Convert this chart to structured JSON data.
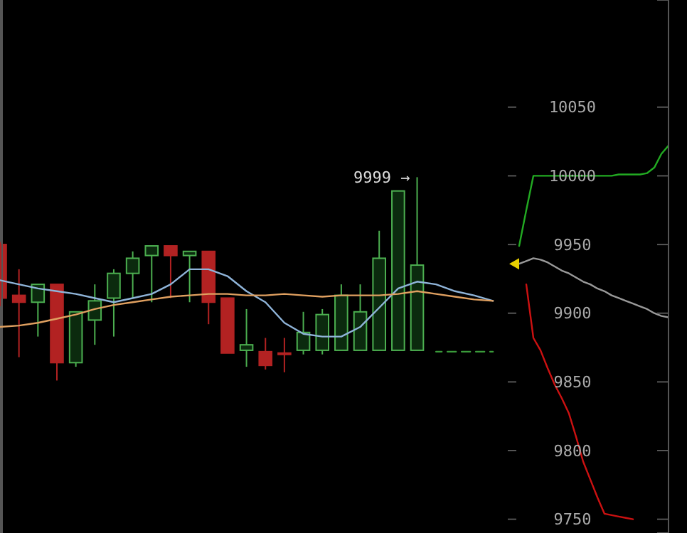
{
  "chart_data": [
    {
      "type": "candlestick",
      "categories": [
        null,
        null,
        null,
        null,
        null,
        null,
        null,
        null,
        null,
        null,
        null,
        null,
        null,
        null,
        null,
        null,
        null,
        null,
        null,
        null,
        null,
        null,
        null
      ],
      "ohlc": [
        [
          9950,
          9952,
          9905,
          9911
        ],
        [
          9913,
          9932,
          9868,
          9908
        ],
        [
          9908,
          9921,
          9883,
          9921
        ],
        [
          9921,
          9921,
          9851,
          9864
        ],
        [
          9864,
          9901,
          9861,
          9901
        ],
        [
          9895,
          9921,
          9877,
          9909
        ],
        [
          9911,
          9932,
          9883,
          9929
        ],
        [
          9929,
          9945,
          9911,
          9940
        ],
        [
          9942,
          9949,
          9908,
          9949
        ],
        [
          9949,
          9949,
          9911,
          9942
        ],
        [
          9942,
          9945,
          9908,
          9945
        ],
        [
          9945,
          9945,
          9892,
          9908
        ],
        [
          9911,
          9911,
          9871,
          9871
        ],
        [
          9873,
          9903,
          9861,
          9877
        ],
        [
          9872,
          9882,
          9859,
          9862
        ],
        [
          9871,
          9882,
          9857,
          9870
        ],
        [
          9873,
          9901,
          9870,
          9886
        ],
        [
          9873,
          9903,
          9870,
          9899
        ],
        [
          9873,
          9921,
          9873,
          9913
        ],
        [
          9873,
          9921,
          9873,
          9901
        ],
        [
          9873,
          9960,
          9873,
          9940
        ],
        [
          9873,
          9989,
          9873,
          9989
        ],
        [
          9873,
          9999,
          9873,
          9935
        ]
      ],
      "colors": [
        "#b22222",
        "#b22222",
        "#4caf50",
        "#b22222",
        "#4caf50",
        "#4caf50",
        "#4caf50",
        "#4caf50",
        "#4caf50",
        "#b22222",
        "#4caf50",
        "#b22222",
        "#b22222",
        "#4caf50",
        "#b22222",
        "#b22222",
        "#4caf50",
        "#4caf50",
        "#4caf50",
        "#4caf50",
        "#4caf50",
        "#4caf50",
        "#4caf50"
      ],
      "ylim": [
        9740,
        10128
      ],
      "tick_labels": false,
      "annotations": [
        "9999 →"
      ]
    },
    {
      "type": "line",
      "categories": [
        null,
        null,
        null,
        null,
        null,
        null,
        null,
        null,
        null,
        null,
        null,
        null,
        null,
        null,
        null,
        null,
        null,
        null,
        null,
        null,
        null,
        null,
        null,
        null,
        null,
        null,
        null
      ],
      "series": [
        {
          "color": "#8fb4d9",
          "values": [
            9924,
            9921,
            9918,
            9916,
            9914,
            9911,
            9908,
            9911,
            9914,
            9921,
            9932,
            9932,
            9927,
            9916,
            9908,
            9893,
            9885,
            9883,
            9883,
            9890,
            9904,
            9918,
            9923,
            9921,
            9916,
            9913,
            9909
          ]
        },
        {
          "color": "#e0a060",
          "values": [
            9890,
            9891,
            9893,
            9896,
            9899,
            9903,
            9906,
            9908,
            9910,
            9912,
            9913,
            9914,
            9914,
            9913,
            9913,
            9914,
            9913,
            9912,
            9913,
            9913,
            9913,
            9914,
            9916,
            9914,
            9912,
            9910,
            9909
          ]
        },
        {
          "color": "#3a9a3a",
          "line_style": "dashed",
          "values": [
            null,
            null,
            null,
            null,
            null,
            null,
            null,
            null,
            null,
            null,
            null,
            null,
            null,
            null,
            null,
            null,
            null,
            null,
            null,
            null,
            null,
            null,
            null,
            9872,
            9872,
            9872,
            9872
          ]
        }
      ],
      "ylim": [
        9740,
        10128
      ],
      "tick_labels": false
    },
    {
      "type": "line",
      "categories": [
        null,
        null,
        null,
        null,
        null,
        null,
        null,
        null,
        null,
        null,
        null,
        null,
        null,
        null,
        null,
        null,
        null,
        null,
        null,
        null,
        null,
        null,
        null,
        null
      ],
      "ylim": [
        9740,
        10128
      ],
      "yticks": [
        9750,
        9800,
        9850,
        9900,
        9950,
        10000,
        10050
      ],
      "tick_labels": "y",
      "series": [
        {
          "color": "#22aa22",
          "values": [
            null,
            null,
            9949,
            9975,
            10000,
            10000,
            10000,
            10000,
            10000,
            10000,
            10000,
            10000,
            10000,
            10000,
            10000,
            10000,
            10001,
            10001,
            10001,
            10001,
            10002,
            10006,
            10016,
            10022
          ]
        },
        {
          "color": "#cc1111",
          "values": [
            null,
            null,
            null,
            9921,
            9882,
            9873,
            9860,
            9848,
            9838,
            9827,
            9810,
            9792,
            9779,
            9766,
            9754,
            9753,
            9752,
            9751,
            9750,
            null,
            null,
            null,
            null,
            null
          ]
        },
        {
          "color": "#999999",
          "values": [
            null,
            null,
            9936,
            9938,
            9940,
            9939,
            9937,
            9934,
            9931,
            9929,
            9926,
            9923,
            9921,
            9918,
            9916,
            9913,
            9911,
            9909,
            9907,
            9905,
            9903,
            9900,
            9898,
            9897
          ]
        }
      ]
    }
  ]
}
